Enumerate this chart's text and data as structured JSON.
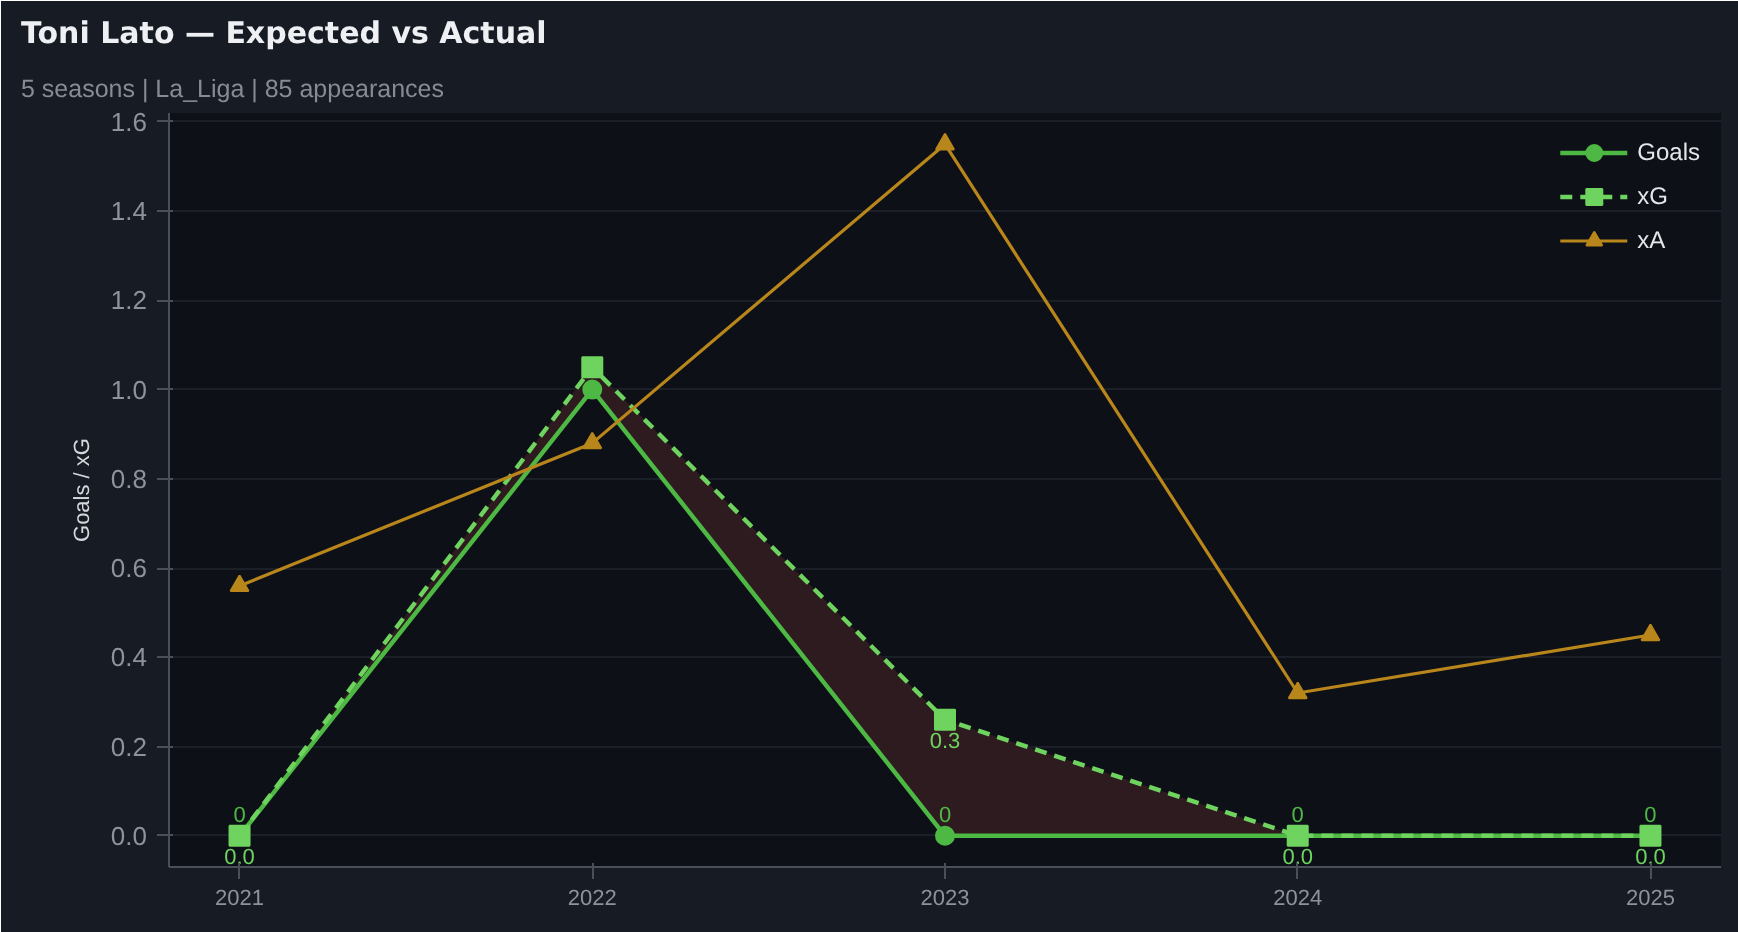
{
  "chart_data": {
    "type": "line",
    "title": "Toni Lato — Expected vs Actual",
    "subtitle": "5 seasons | La_Liga | 85 appearances",
    "ylabel": "Goals / xG",
    "x": [
      2021,
      2022,
      2023,
      2024,
      2025
    ],
    "xlim": [
      2020.8,
      2025.2
    ],
    "xticks": [
      2021,
      2022,
      2023,
      2024,
      2025
    ],
    "ylim": [
      -0.07,
      1.62
    ],
    "yticks": [
      {
        "value": 0,
        "label": "0.0"
      },
      {
        "value": 0.2,
        "label": "0.2"
      },
      {
        "value": 0.4,
        "label": "0.4"
      },
      {
        "value": 0.6,
        "label": "0.6"
      },
      {
        "value": 0.8,
        "label": "0.8"
      },
      {
        "value": 1.0,
        "label": "1.0"
      },
      {
        "value": 1.2,
        "label": "1.2"
      },
      {
        "value": 1.4,
        "label": "1.4"
      },
      {
        "value": 1.6,
        "label": "1.6"
      }
    ],
    "grid": "y",
    "legend": "top right",
    "series": [
      {
        "name": "Goals",
        "color": "#4db843",
        "values": [
          0,
          1,
          0,
          0,
          0
        ],
        "marker": "circle",
        "line_style": "solid",
        "value_labels": [
          "0",
          null,
          "0",
          "0",
          "0"
        ]
      },
      {
        "name": "xG",
        "color": "#6fd35f",
        "values": [
          0,
          1.05,
          0.26,
          0,
          0
        ],
        "marker": "square",
        "line_style": "dashed",
        "value_labels": [
          "0.0",
          null,
          "0.3",
          "0.0",
          "0.0"
        ],
        "lower": [
          0,
          1,
          0,
          0,
          0
        ],
        "upper": [
          0,
          1.05,
          0.26,
          0,
          0
        ]
      },
      {
        "name": "xA",
        "color": "#b8861b",
        "values": [
          0.56,
          0.88,
          1.55,
          0.32,
          0.45
        ],
        "marker": "triangle",
        "line_style": "solid"
      }
    ]
  }
}
